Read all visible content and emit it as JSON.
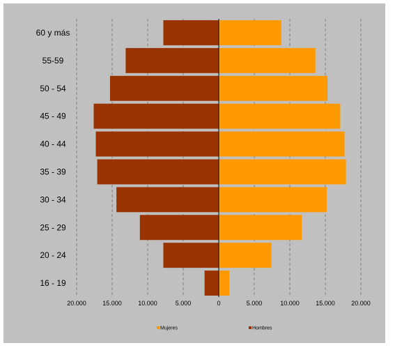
{
  "chart_data": {
    "type": "bar",
    "orientation": "horizontal",
    "layout": "population-pyramid",
    "categories": [
      "60 y más",
      "55-59",
      "50 - 54",
      "45 - 49",
      "40 - 44",
      "35 - 39",
      "30 - 34",
      "25 - 29",
      "20 - 24",
      "16 - 19"
    ],
    "series": [
      {
        "name": "Hombres",
        "side": "left",
        "color": "#993300",
        "values": [
          7800,
          13100,
          15300,
          17600,
          17300,
          17100,
          14400,
          11100,
          7800,
          2000
        ]
      },
      {
        "name": "Mujeres",
        "side": "right",
        "color": "#FF9900",
        "values": [
          8800,
          13600,
          15300,
          17100,
          17700,
          17900,
          15200,
          11700,
          7400,
          1500
        ]
      }
    ],
    "x_ticks": [
      "20.000",
      "15.000",
      "10.000",
      "5.000",
      "0",
      "5.000",
      "10.000",
      "15.000",
      "20.000"
    ],
    "xlim": [
      -20000,
      20000
    ],
    "grid": "vertical dashed",
    "legend": {
      "position": "bottom",
      "order": [
        "Mujeres",
        "Hombres"
      ]
    },
    "background": "#c0c0c0"
  }
}
